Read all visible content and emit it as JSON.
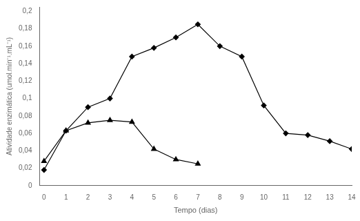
{
  "chart_data": {
    "type": "line",
    "x_label": "Tempo (dias)",
    "y_label": "Atividade enzimática (umol.min⁻¹.mL⁻¹)",
    "x": [
      0,
      1,
      2,
      3,
      4,
      5,
      6,
      7,
      8,
      9,
      10,
      11,
      12,
      13,
      14
    ],
    "series": [
      {
        "color": "#000000",
        "marker": "diamond",
        "values": [
          0.018,
          0.063,
          0.09,
          0.1,
          0.148,
          0.158,
          0.17,
          0.185,
          0.16,
          0.148,
          0.092,
          0.06,
          0.058,
          0.051,
          0.042
        ]
      },
      {
        "color": "#000000",
        "marker": "triangle",
        "values": [
          0.028,
          0.063,
          0.072,
          0.075,
          0.073,
          0.042,
          0.03,
          0.025,
          null,
          null,
          null,
          null,
          null,
          null,
          null
        ]
      }
    ],
    "xlim": [
      -0.2,
      14
    ],
    "xticks": [
      0,
      1,
      2,
      3,
      4,
      5,
      6,
      7,
      8,
      9,
      10,
      11,
      12,
      13,
      14
    ],
    "ylim": [
      0,
      0.205
    ],
    "yticks": [
      0,
      {
        "value": 0.02,
        "label": "0,02"
      },
      {
        "value": 0.04,
        "label": "0,04"
      },
      {
        "value": 0.06,
        "label": "0,06"
      },
      {
        "value": 0.08,
        "label": "0,08"
      },
      {
        "value": 0.1,
        "label": "0,1"
      },
      {
        "value": 0.12,
        "label": "0,12"
      },
      {
        "value": 0.14,
        "label": "0,14"
      },
      {
        "value": 0.16,
        "label": "0,16"
      },
      {
        "value": 0.18,
        "label": "0,18"
      },
      {
        "value": 0.2,
        "label": "0,2"
      }
    ],
    "grid": false
  }
}
